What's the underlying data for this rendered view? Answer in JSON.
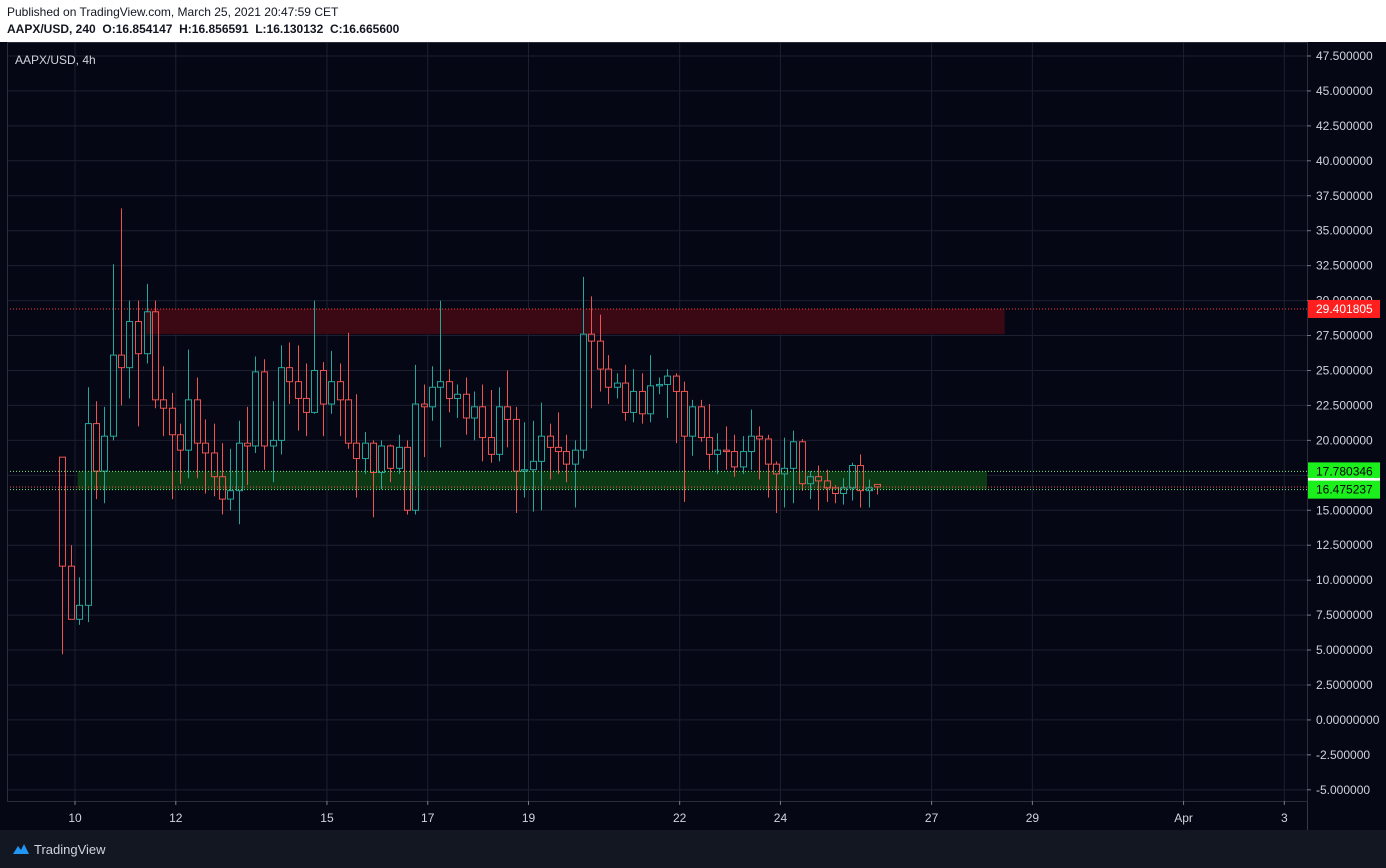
{
  "header": {
    "published": "Published on TradingView.com, March 25, 2021 20:47:59 CET",
    "symbol_line": "AAPX/USD, 240",
    "o_label": "O:",
    "o_value": "16.854147",
    "h_label": "H:",
    "h_value": "16.856591",
    "l_label": "L:",
    "l_value": "16.130132",
    "c_label": "C:",
    "c_value": "16.665600"
  },
  "chart_title": "AAPX/USD, 4h",
  "footer": {
    "brand": "TradingView"
  },
  "colors": {
    "background": "#050714",
    "up": "#26a69a",
    "down": "#ef5350",
    "resistance_zone": "#3d0a14",
    "support_zone": "#0d3d14",
    "red_label": "#ff1f1f",
    "green_label": "#1cf01c",
    "grid": "#1c2030",
    "text": "#d1d4dc"
  },
  "chart_data": {
    "type": "candlestick",
    "ylim": [
      -5.8,
      48.5
    ],
    "y_ticks": [
      "47.500000",
      "45.000000",
      "42.500000",
      "40.000000",
      "37.500000",
      "35.000000",
      "32.500000",
      "30.000000",
      "27.500000",
      "25.000000",
      "22.500000",
      "20.000000",
      "17.500000",
      "15.000000",
      "12.500000",
      "10.000000",
      "7.5000000",
      "5.0000000",
      "2.5000000",
      "0.00000000",
      "-2.500000",
      "-5.000000"
    ],
    "y_tick_values": [
      47.5,
      45,
      42.5,
      40,
      37.5,
      35,
      32.5,
      30,
      27.5,
      25,
      22.5,
      20,
      17.5,
      15,
      12.5,
      10,
      7.5,
      5,
      2.5,
      0,
      -2.5,
      -5
    ],
    "x_ticks": [
      "10",
      "12",
      "15",
      "17",
      "19",
      "22",
      "24",
      "27",
      "29",
      "Apr",
      "3"
    ],
    "x_tick_days": [
      10,
      12,
      15,
      17,
      19,
      22,
      24,
      27,
      29,
      32,
      34
    ],
    "x_range_days": [
      8.65,
      34.45
    ],
    "candles": [
      [
        9.75,
        18.8,
        11.0,
        4.7,
        18.8
      ],
      [
        9.92,
        11.0,
        7.2,
        7.2,
        12.5
      ],
      [
        10.08,
        7.2,
        8.2,
        6.8,
        10.2
      ],
      [
        10.25,
        8.2,
        21.2,
        7.0,
        23.8
      ],
      [
        10.42,
        21.2,
        17.8,
        15.8,
        22.8
      ],
      [
        10.58,
        17.8,
        20.3,
        15.5,
        22.4
      ],
      [
        10.75,
        20.3,
        26.1,
        20.0,
        32.6
      ],
      [
        10.92,
        26.1,
        25.2,
        22.5,
        36.6
      ],
      [
        11.08,
        25.2,
        28.5,
        23.0,
        30.0
      ],
      [
        11.25,
        28.5,
        26.2,
        21.0,
        30.0
      ],
      [
        11.42,
        26.2,
        29.2,
        25.5,
        31.2
      ],
      [
        11.58,
        29.2,
        22.9,
        22.3,
        30.0
      ],
      [
        11.75,
        22.9,
        22.3,
        20.3,
        25.3
      ],
      [
        11.92,
        22.3,
        20.4,
        15.8,
        23.4
      ],
      [
        12.08,
        20.4,
        19.3,
        16.9,
        21.2
      ],
      [
        12.25,
        19.3,
        22.9,
        17.3,
        26.5
      ],
      [
        12.42,
        22.9,
        19.8,
        17.3,
        24.5
      ],
      [
        12.58,
        19.8,
        19.1,
        16.2,
        21.5
      ],
      [
        12.75,
        19.1,
        17.4,
        16.0,
        21.2
      ],
      [
        12.92,
        17.4,
        15.8,
        14.7,
        19.8
      ],
      [
        13.08,
        15.8,
        16.4,
        15.0,
        19.4
      ],
      [
        13.25,
        16.4,
        19.8,
        14.0,
        21.4
      ],
      [
        13.42,
        19.8,
        19.6,
        16.8,
        22.4
      ],
      [
        13.58,
        19.6,
        24.9,
        19.1,
        26.0
      ],
      [
        13.75,
        24.9,
        19.6,
        17.9,
        25.8
      ],
      [
        13.92,
        19.6,
        20.0,
        17.0,
        22.8
      ],
      [
        14.08,
        20.0,
        25.2,
        19.0,
        26.8
      ],
      [
        14.25,
        25.2,
        24.2,
        22.6,
        27.0
      ],
      [
        14.42,
        24.2,
        23.0,
        20.7,
        26.8
      ],
      [
        14.58,
        23.0,
        22.0,
        20.3,
        25.5
      ],
      [
        14.75,
        22.0,
        25.0,
        21.9,
        30.0
      ],
      [
        14.92,
        25.0,
        22.6,
        20.3,
        25.6
      ],
      [
        15.08,
        22.6,
        24.2,
        21.9,
        26.4
      ],
      [
        15.25,
        24.2,
        22.9,
        20.3,
        25.5
      ],
      [
        15.42,
        22.9,
        19.8,
        19.4,
        27.7
      ],
      [
        15.58,
        19.8,
        18.7,
        15.9,
        23.3
      ],
      [
        15.75,
        18.7,
        19.8,
        17.6,
        20.6
      ],
      [
        15.92,
        19.8,
        17.7,
        14.5,
        20.0
      ],
      [
        16.08,
        17.7,
        19.6,
        16.5,
        20.0
      ],
      [
        16.25,
        19.6,
        18.0,
        17.0,
        19.7
      ],
      [
        16.42,
        18.0,
        19.5,
        17.6,
        20.4
      ],
      [
        16.58,
        19.5,
        15.0,
        14.7,
        20.0
      ],
      [
        16.75,
        15.0,
        22.6,
        14.7,
        25.4
      ],
      [
        16.92,
        22.6,
        22.4,
        18.8,
        24.0
      ],
      [
        17.08,
        22.4,
        23.8,
        21.4,
        25.3
      ],
      [
        17.25,
        23.8,
        24.2,
        19.5,
        30.0
      ],
      [
        17.42,
        24.2,
        23.0,
        22.0,
        25.1
      ],
      [
        17.58,
        23.0,
        23.3,
        21.6,
        24.0
      ],
      [
        17.75,
        23.3,
        21.6,
        20.4,
        24.5
      ],
      [
        17.92,
        21.6,
        22.4,
        20.0,
        23.5
      ],
      [
        18.08,
        22.4,
        20.2,
        18.5,
        24.0
      ],
      [
        18.25,
        20.2,
        19.0,
        18.4,
        23.6
      ],
      [
        18.42,
        19.0,
        22.4,
        18.5,
        23.8
      ],
      [
        18.58,
        22.4,
        21.5,
        19.5,
        25.0
      ],
      [
        18.75,
        21.5,
        17.8,
        14.8,
        22.4
      ],
      [
        18.92,
        17.8,
        17.9,
        15.9,
        21.3
      ],
      [
        19.08,
        17.9,
        18.5,
        14.9,
        21.4
      ],
      [
        19.25,
        18.5,
        20.3,
        15.0,
        22.7
      ],
      [
        19.42,
        20.3,
        19.5,
        17.2,
        21.2
      ],
      [
        19.58,
        19.5,
        19.2,
        17.6,
        22.0
      ],
      [
        19.75,
        19.2,
        18.3,
        17.0,
        20.4
      ],
      [
        19.92,
        18.3,
        19.3,
        15.2,
        20.0
      ],
      [
        20.08,
        19.3,
        27.6,
        18.7,
        31.7
      ],
      [
        20.25,
        27.6,
        27.1,
        22.3,
        30.3
      ],
      [
        20.42,
        27.1,
        25.1,
        23.5,
        29.0
      ],
      [
        20.58,
        25.1,
        23.8,
        22.6,
        26.1
      ],
      [
        20.75,
        23.8,
        24.1,
        23.0,
        24.8
      ],
      [
        20.92,
        24.1,
        22.0,
        21.4,
        25.4
      ],
      [
        21.08,
        22.0,
        23.5,
        21.3,
        25.1
      ],
      [
        21.25,
        23.5,
        21.9,
        21.2,
        24.8
      ],
      [
        21.42,
        21.9,
        23.9,
        21.3,
        26.1
      ],
      [
        21.58,
        23.9,
        24.0,
        23.3,
        24.5
      ],
      [
        21.75,
        24.0,
        24.6,
        21.6,
        25.1
      ],
      [
        21.92,
        24.6,
        23.5,
        19.8,
        24.8
      ],
      [
        22.08,
        23.5,
        20.3,
        15.6,
        24.2
      ],
      [
        22.25,
        20.3,
        22.4,
        18.9,
        22.9
      ],
      [
        22.42,
        22.4,
        20.2,
        19.9,
        22.9
      ],
      [
        22.58,
        20.2,
        19.0,
        17.9,
        22.6
      ],
      [
        22.75,
        19.0,
        19.3,
        17.6,
        20.5
      ],
      [
        22.92,
        19.3,
        19.2,
        17.9,
        21.0
      ],
      [
        23.08,
        19.2,
        18.1,
        17.4,
        20.4
      ],
      [
        23.25,
        18.1,
        19.2,
        17.6,
        20.3
      ],
      [
        23.42,
        19.2,
        20.3,
        17.9,
        22.2
      ],
      [
        23.58,
        20.3,
        20.1,
        17.2,
        21.0
      ],
      [
        23.75,
        20.1,
        18.3,
        15.9,
        20.4
      ],
      [
        23.92,
        18.3,
        17.6,
        14.8,
        18.5
      ],
      [
        24.08,
        17.6,
        18.0,
        15.2,
        20.2
      ],
      [
        24.25,
        18.0,
        19.9,
        15.5,
        20.7
      ],
      [
        24.42,
        19.9,
        16.9,
        16.4,
        20.1
      ],
      [
        24.58,
        16.9,
        17.4,
        15.8,
        17.8
      ],
      [
        24.75,
        17.4,
        17.1,
        15.0,
        18.2
      ],
      [
        24.92,
        17.1,
        16.6,
        15.6,
        17.9
      ],
      [
        25.08,
        16.6,
        16.2,
        15.5,
        16.8
      ],
      [
        25.25,
        16.2,
        16.6,
        15.4,
        17.3
      ],
      [
        25.42,
        16.6,
        18.2,
        15.7,
        18.4
      ],
      [
        25.58,
        18.2,
        16.4,
        15.2,
        19.0
      ],
      [
        25.75,
        16.4,
        16.6,
        15.2,
        17.2
      ],
      [
        25.92,
        16.85,
        16.67,
        16.13,
        16.86
      ]
    ],
    "zones": [
      {
        "name": "resistance",
        "from_day": 11.4,
        "to_day": 28.45,
        "top": 29.4,
        "bottom": 27.6
      },
      {
        "name": "support",
        "from_day": 10.05,
        "to_day": 28.1,
        "top": 17.78,
        "bottom": 16.48
      }
    ],
    "levels": [
      {
        "value": 29.401805,
        "label": "29.401805",
        "color": "red"
      },
      {
        "value": 17.780346,
        "label": "17.780346",
        "color": "green"
      },
      {
        "value": 16.6656,
        "label": "16.665600",
        "color": "current"
      },
      {
        "value": 16.475237,
        "label": "16.475237",
        "color": "green"
      }
    ]
  }
}
